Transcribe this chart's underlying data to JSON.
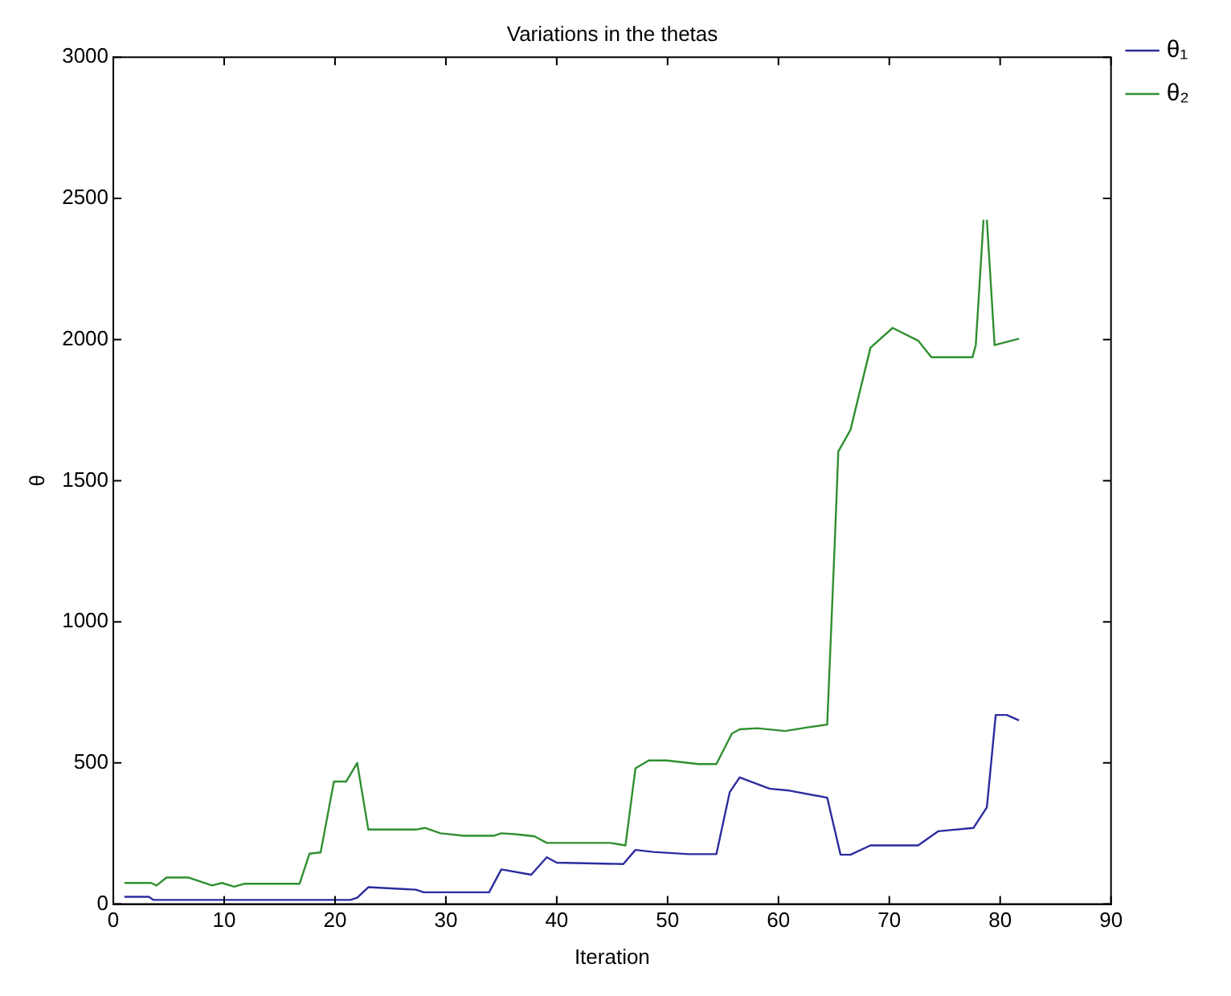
{
  "chart_data": {
    "type": "line",
    "title": "Variations in the thetas",
    "xlabel": "Iteration",
    "ylabel": "θ",
    "xlim": [
      0,
      90
    ],
    "xticks": [
      0,
      10,
      20,
      30,
      40,
      50,
      60,
      70,
      80,
      90
    ],
    "ylim": [
      0,
      3000
    ],
    "yticks": [
      0,
      500,
      1000,
      1500,
      2000,
      2500,
      3000
    ],
    "grid": false,
    "legend": "top right",
    "marker": "none",
    "line_style": "solid",
    "series": [
      {
        "name": "θ₁",
        "color": "#2c2ca0",
        "x": [
          1,
          3.2,
          3.6,
          21.4,
          22,
          23,
          27.3,
          28,
          33.9,
          35,
          37.7,
          39.1,
          40,
          46,
          47.1,
          48.7,
          51.9,
          54.4,
          55.6,
          56.5,
          59.2,
          61,
          64.4,
          65.6,
          66.5,
          68.3,
          72.6,
          74.4,
          77.6,
          78.8,
          79.6,
          80.6,
          81.7
        ],
        "values": [
          26,
          26,
          15,
          15,
          23,
          60,
          51,
          42,
          42,
          123,
          104,
          166,
          147,
          142,
          192,
          185,
          177,
          177,
          396,
          449,
          409,
          402,
          377,
          175,
          175,
          208,
          208,
          258,
          270,
          343,
          670,
          670,
          651
        ]
      },
      {
        "name": "θ₂",
        "color": "#2f8f2f",
        "x": [
          1,
          3.4,
          3.9,
          4.8,
          6.8,
          8.9,
          9.8,
          10.9,
          11.8,
          16.8,
          17.7,
          18.7,
          19.9,
          21,
          22,
          23,
          27.3,
          28.1,
          29.5,
          31.6,
          34.3,
          35,
          36.4,
          38,
          39.1,
          44.8,
          46.2,
          47.1,
          48.3,
          49.9,
          52.8,
          54.4,
          55.8,
          56.5,
          58.1,
          60.6,
          62.6,
          64.4,
          65.1,
          65.4,
          66.5,
          68.3,
          70.3,
          72.6,
          73.8,
          77.5,
          77.8,
          78.5,
          78.65,
          78.8,
          79.5,
          81.7
        ],
        "values": [
          75,
          75,
          66,
          94,
          94,
          66,
          75,
          62,
          72,
          72,
          179,
          183,
          434,
          434,
          500,
          264,
          264,
          270,
          251,
          242,
          242,
          251,
          247,
          240,
          217,
          217,
          208,
          481,
          509,
          509,
          496,
          496,
          604,
          619,
          623,
          613,
          626,
          636,
          1300,
          1603,
          1680,
          1971,
          2041,
          1996,
          1937,
          1937,
          1980,
          2424,
          null,
          2424,
          1980,
          2003
        ]
      }
    ]
  }
}
